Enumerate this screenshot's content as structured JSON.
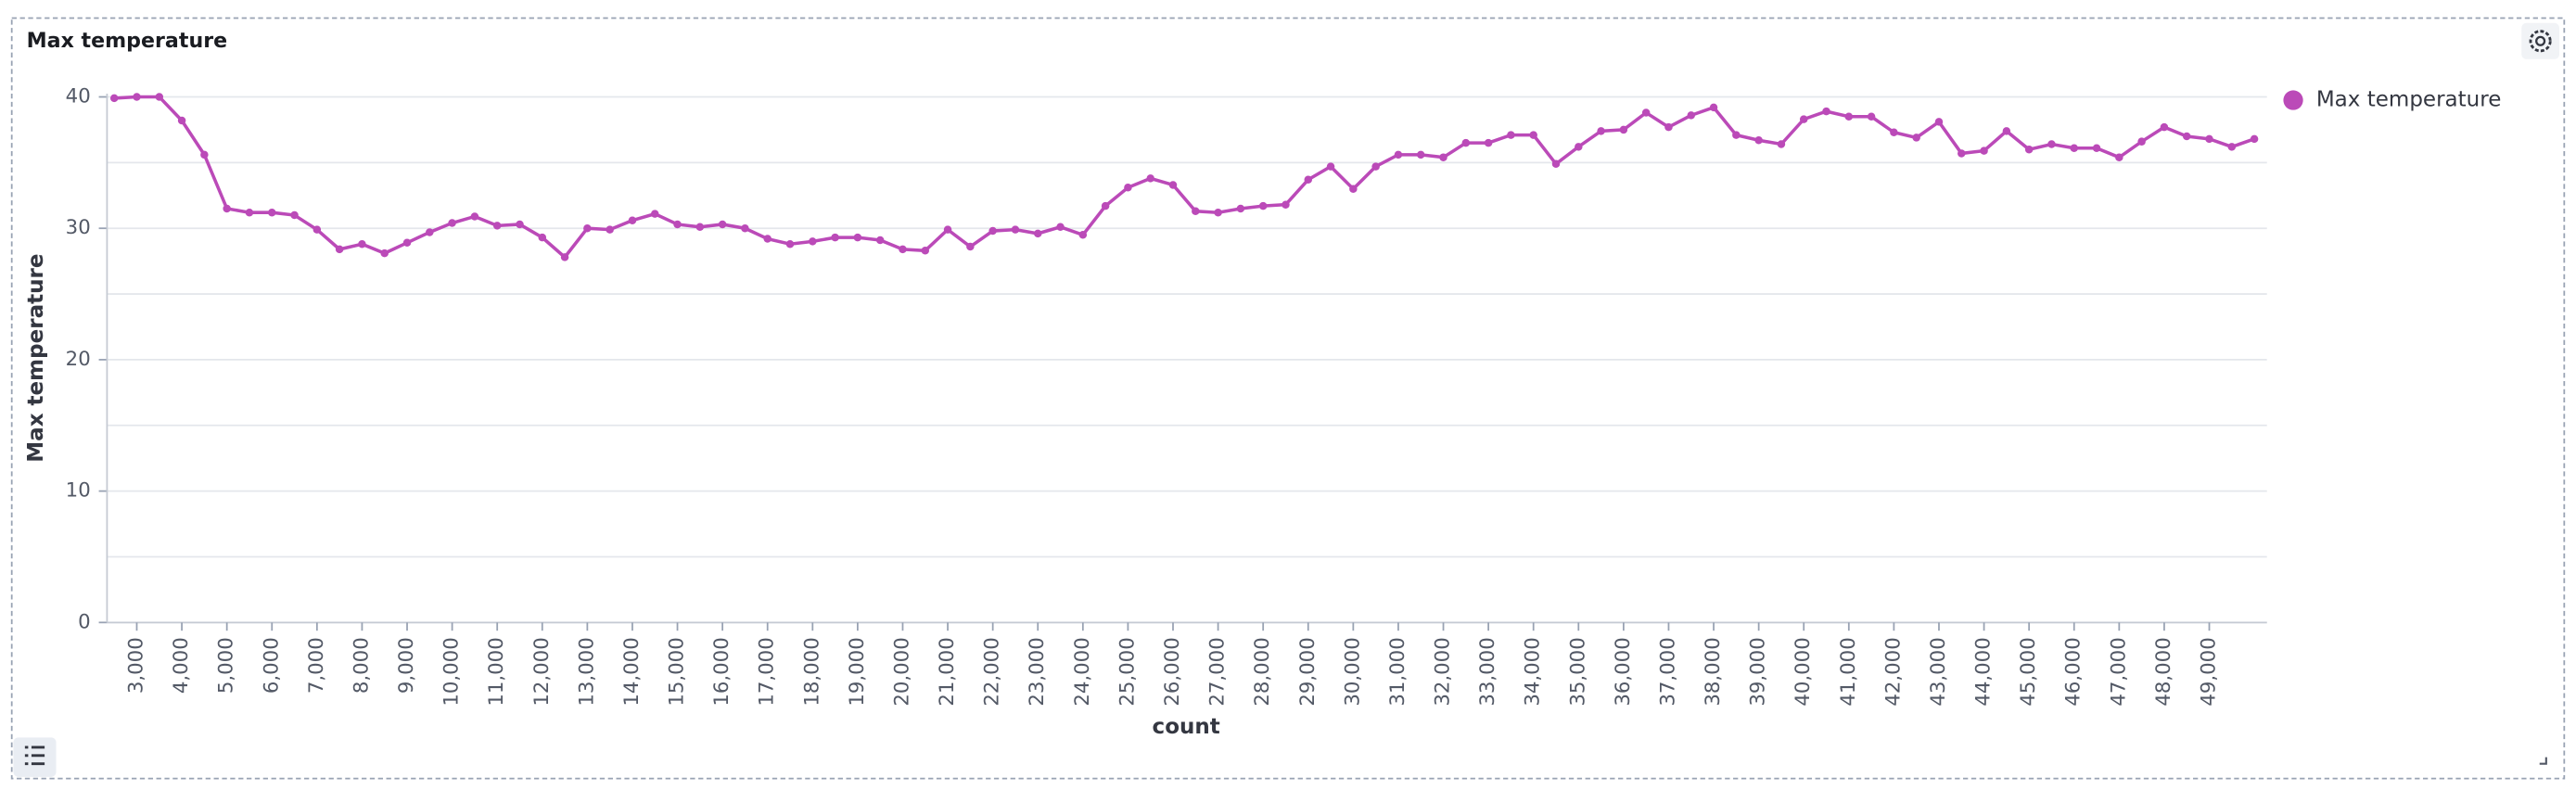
{
  "chart_data": {
    "type": "line",
    "title": "Max temperature",
    "xlabel": "count",
    "ylabel": "Max temperature",
    "x": [
      2500,
      3000,
      3500,
      4000,
      4500,
      5000,
      5500,
      6000,
      6500,
      7000,
      7500,
      8000,
      8500,
      9000,
      9500,
      10000,
      10500,
      11000,
      11500,
      12000,
      12500,
      13000,
      13500,
      14000,
      14500,
      15000,
      15500,
      16000,
      16500,
      17000,
      17500,
      18000,
      18500,
      19000,
      19500,
      20000,
      20500,
      21000,
      21500,
      22000,
      22500,
      23000,
      23500,
      24000,
      24500,
      25000,
      25500,
      26000,
      26500,
      27000,
      27500,
      28000,
      28500,
      29000,
      29500,
      30000,
      30500,
      31000,
      31500,
      32000,
      32500,
      33000,
      33500,
      34000,
      34500,
      35000,
      35500,
      36000,
      36500,
      37000,
      37500,
      38000,
      38500,
      39000,
      39500,
      40000,
      40500,
      41000,
      41500,
      42000,
      42500,
      43000,
      43500,
      44000,
      44500,
      45000,
      45500,
      46000,
      46500,
      47000,
      47500,
      48000,
      48500,
      49000,
      49500,
      50000
    ],
    "series": [
      {
        "name": "Max temperature",
        "color": "#bb4ab8",
        "values": [
          39.9,
          40,
          40,
          38.2,
          35.6,
          31.5,
          31.2,
          31.2,
          31.0,
          29.9,
          28.4,
          28.8,
          28.1,
          28.9,
          29.7,
          30.4,
          30.9,
          30.2,
          30.3,
          29.3,
          27.8,
          30.0,
          29.9,
          30.6,
          31.1,
          30.3,
          30.1,
          30.3,
          30.0,
          29.2,
          28.8,
          29.0,
          29.3,
          29.3,
          29.1,
          28.4,
          28.3,
          29.9,
          28.6,
          29.8,
          29.9,
          29.6,
          30.1,
          29.5,
          31.7,
          33.1,
          33.8,
          33.3,
          31.3,
          31.2,
          31.5,
          31.7,
          31.8,
          33.7,
          34.7,
          33.0,
          34.7,
          35.6,
          35.6,
          35.4,
          36.5,
          36.5,
          37.1,
          37.1,
          34.9,
          36.2,
          37.4,
          37.5,
          38.8,
          37.7,
          38.6,
          39.2,
          37.1,
          36.7,
          36.4,
          38.3,
          38.9,
          38.5,
          38.5,
          37.3,
          36.9,
          38.1,
          35.7,
          35.9,
          37.4,
          36.0,
          36.4,
          36.1,
          36.1,
          35.4,
          36.6,
          37.7,
          37.0,
          36.8,
          36.2,
          36.8
        ]
      }
    ],
    "xlim": [
      2340,
      50280
    ],
    "ylim": [
      0,
      40
    ],
    "yticks": [
      0,
      10,
      20,
      30,
      40
    ],
    "ygridlines": [
      0,
      5,
      10,
      15,
      20,
      25,
      30,
      35,
      40
    ],
    "xticks": [
      {
        "value": 3000,
        "label": "3,000"
      },
      {
        "value": 4000,
        "label": "4,000"
      },
      {
        "value": 5000,
        "label": "5,000"
      },
      {
        "value": 6000,
        "label": "6,000"
      },
      {
        "value": 7000,
        "label": "7,000"
      },
      {
        "value": 8000,
        "label": "8,000"
      },
      {
        "value": 9000,
        "label": "9,000"
      },
      {
        "value": 10000,
        "label": "10,000"
      },
      {
        "value": 11000,
        "label": "11,000"
      },
      {
        "value": 12000,
        "label": "12,000"
      },
      {
        "value": 13000,
        "label": "13,000"
      },
      {
        "value": 14000,
        "label": "14,000"
      },
      {
        "value": 15000,
        "label": "15,000"
      },
      {
        "value": 16000,
        "label": "16,000"
      },
      {
        "value": 17000,
        "label": "17,000"
      },
      {
        "value": 18000,
        "label": "18,000"
      },
      {
        "value": 19000,
        "label": "19,000"
      },
      {
        "value": 20000,
        "label": "20,000"
      },
      {
        "value": 21000,
        "label": "21,000"
      },
      {
        "value": 22000,
        "label": "22,000"
      },
      {
        "value": 23000,
        "label": "23,000"
      },
      {
        "value": 24000,
        "label": "24,000"
      },
      {
        "value": 25000,
        "label": "25,000"
      },
      {
        "value": 26000,
        "label": "26,000"
      },
      {
        "value": 27000,
        "label": "27,000"
      },
      {
        "value": 28000,
        "label": "28,000"
      },
      {
        "value": 29000,
        "label": "29,000"
      },
      {
        "value": 30000,
        "label": "30,000"
      },
      {
        "value": 31000,
        "label": "31,000"
      },
      {
        "value": 32000,
        "label": "32,000"
      },
      {
        "value": 33000,
        "label": "33,000"
      },
      {
        "value": 34000,
        "label": "34,000"
      },
      {
        "value": 35000,
        "label": "35,000"
      },
      {
        "value": 36000,
        "label": "36,000"
      },
      {
        "value": 37000,
        "label": "37,000"
      },
      {
        "value": 38000,
        "label": "38,000"
      },
      {
        "value": 39000,
        "label": "39,000"
      },
      {
        "value": 40000,
        "label": "40,000"
      },
      {
        "value": 41000,
        "label": "41,000"
      },
      {
        "value": 42000,
        "label": "42,000"
      },
      {
        "value": 43000,
        "label": "43,000"
      },
      {
        "value": 44000,
        "label": "44,000"
      },
      {
        "value": 45000,
        "label": "45,000"
      },
      {
        "value": 46000,
        "label": "46,000"
      },
      {
        "value": 47000,
        "label": "47,000"
      },
      {
        "value": 48000,
        "label": "48,000"
      },
      {
        "value": 49000,
        "label": "49,000"
      }
    ],
    "grid": true,
    "legend": "right"
  }
}
